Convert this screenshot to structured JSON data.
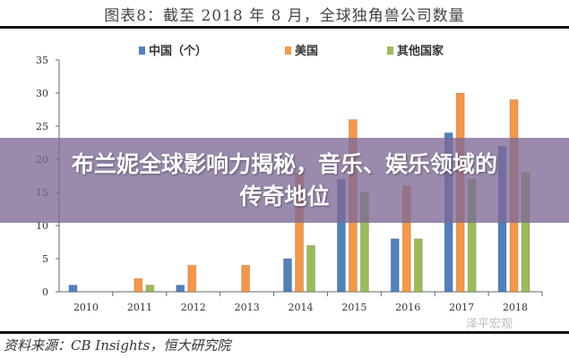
{
  "chart_data": {
    "type": "bar",
    "title": "图表8：截至 2018 年 8 月，全球独角兽公司数量",
    "categories": [
      "2010",
      "2011",
      "2012",
      "2013",
      "2014",
      "2015",
      "2016",
      "2017",
      "2018"
    ],
    "series": [
      {
        "name": "中国（个）",
        "color": "#4f81bd",
        "values": [
          1,
          0,
          1,
          0,
          5,
          17,
          8,
          24,
          22
        ]
      },
      {
        "name": "美国",
        "color": "#f79646",
        "values": [
          0,
          2,
          4,
          4,
          18,
          26,
          16,
          30,
          29
        ]
      },
      {
        "name": "其他国家",
        "color": "#9bbb59",
        "values": [
          0,
          1,
          0,
          0,
          7,
          15,
          8,
          17,
          18
        ]
      }
    ],
    "ylim": [
      0,
      35
    ],
    "yticks": [
      0,
      5,
      10,
      15,
      20,
      25,
      30,
      35
    ],
    "legend": "top",
    "grid": false,
    "source": "资料来源：CB Insights，恒大研究院",
    "watermark": "泽平宏观"
  },
  "banner": {
    "headline": "布兰妮全球影响力揭秘，音乐、娱乐领域的传奇地位"
  }
}
